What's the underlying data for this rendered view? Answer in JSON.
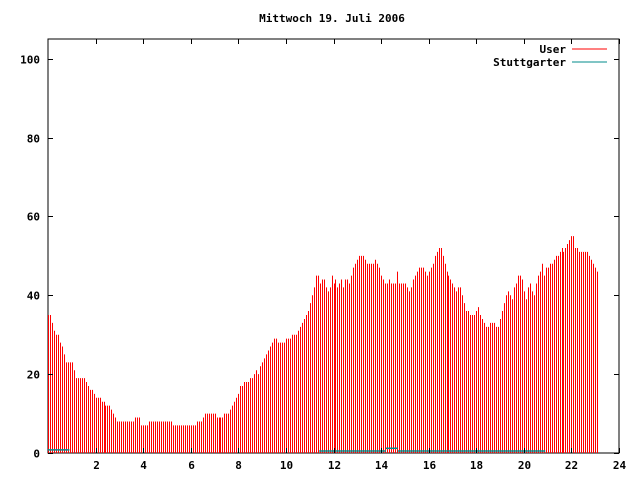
{
  "chart_data": {
    "type": "bar",
    "title": "Mittwoch 19. Juli 2006",
    "xlabel": "",
    "ylabel": "",
    "xlim": [
      0,
      24
    ],
    "ylim": [
      0,
      105
    ],
    "x_ticks": [
      2,
      4,
      6,
      8,
      10,
      12,
      14,
      16,
      18,
      20,
      22,
      24
    ],
    "x_tick_labels": [
      "2",
      "4",
      "6",
      "8",
      "10",
      "12",
      "14",
      "16",
      "18",
      "20",
      "22",
      "24"
    ],
    "y_ticks": [
      0,
      20,
      40,
      60,
      80,
      100
    ],
    "y_tick_labels": [
      "0",
      "20",
      "40",
      "60",
      "80",
      "100"
    ],
    "grid": false,
    "legend": "top-right",
    "samples_per_hour": 12,
    "series": [
      {
        "name": "User",
        "color": "#ff0000",
        "values": [
          35,
          35,
          33,
          31,
          30,
          30,
          28,
          27,
          25,
          23,
          23,
          23,
          23,
          21,
          19,
          19,
          19,
          19,
          19,
          18,
          17,
          16,
          16,
          15,
          14,
          14,
          14,
          13,
          13,
          12,
          12,
          12,
          11,
          10,
          9,
          8,
          8,
          8,
          8,
          8,
          8,
          8,
          8,
          8,
          9,
          9,
          9,
          7,
          7,
          7,
          7,
          8,
          8,
          8,
          8,
          8,
          8,
          8,
          8,
          8,
          8,
          8,
          8,
          7,
          7,
          7,
          7,
          7,
          7,
          7,
          7,
          7,
          7,
          7,
          7,
          8,
          8,
          8,
          9,
          10,
          10,
          10,
          10,
          10,
          10,
          9,
          9,
          9,
          9,
          10,
          10,
          10,
          11,
          12,
          13,
          14,
          15,
          17,
          17,
          18,
          18,
          18,
          19,
          19,
          20,
          21,
          20,
          22,
          23,
          24,
          25,
          26,
          27,
          28,
          29,
          29,
          28,
          28,
          28,
          28,
          29,
          29,
          29,
          30,
          30,
          30,
          31,
          32,
          33,
          34,
          35,
          36,
          38,
          40,
          42,
          45,
          45,
          43,
          44,
          44,
          42,
          41,
          42,
          45,
          43,
          44,
          42,
          43,
          44,
          42,
          44,
          44,
          43,
          45,
          47,
          48,
          49,
          50,
          50,
          50,
          49,
          48,
          48,
          48,
          48,
          49,
          48,
          47,
          45,
          44,
          43,
          43,
          44,
          43,
          43,
          43,
          46,
          43,
          43,
          43,
          43,
          42,
          41,
          42,
          44,
          45,
          46,
          47,
          47,
          47,
          46,
          45,
          46,
          47,
          48,
          50,
          51,
          52,
          52,
          50,
          48,
          46,
          45,
          44,
          43,
          42,
          41,
          42,
          42,
          40,
          38,
          36,
          36,
          35,
          35,
          35,
          36,
          37,
          35,
          34,
          33,
          32,
          32,
          33,
          33,
          33,
          32,
          32,
          34,
          36,
          38,
          40,
          41,
          40,
          39,
          42,
          43,
          45,
          45,
          44,
          41,
          39,
          42,
          43,
          41,
          40,
          43,
          45,
          46,
          48,
          45,
          47,
          47,
          48,
          48,
          49,
          50,
          50,
          51,
          52,
          51,
          52,
          53,
          54,
          55,
          55,
          52,
          52,
          51,
          51,
          51,
          51,
          51,
          50,
          49,
          48,
          47,
          46
        ]
      },
      {
        "name": "Stuttgarter",
        "color": "#008b8b",
        "segments": [
          {
            "from": 0,
            "to": 0.9,
            "value": 0.8
          },
          {
            "from": 11.4,
            "to": 14.2,
            "value": 0.5
          },
          {
            "from": 14.2,
            "to": 14.7,
            "value": 1.2
          },
          {
            "from": 14.7,
            "to": 20.9,
            "value": 0.5
          }
        ]
      }
    ]
  }
}
